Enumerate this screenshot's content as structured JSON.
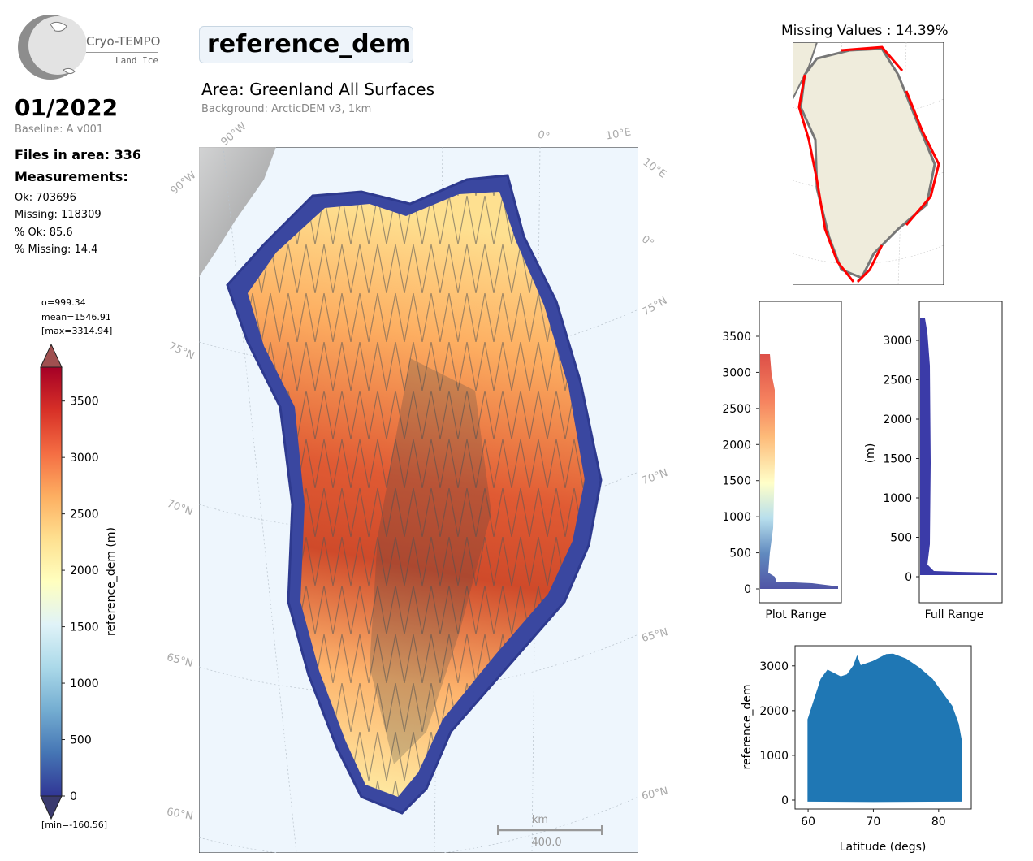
{
  "logo": {
    "name": "Cryo-TEMPO",
    "subtitle": "Land Ice"
  },
  "header": {
    "date": "01/2022",
    "baseline": "Baseline: A v001",
    "files_in_area": "Files in area: 336",
    "measurements_heading": "Measurements:",
    "stats": [
      "Ok: 703696",
      "Missing: 118309",
      "% Ok: 85.6",
      "% Missing: 14.4"
    ]
  },
  "main_map": {
    "title": "reference_dem",
    "area": "Area: Greenland All Surfaces",
    "background": "Background: ArcticDEM v3, 1km",
    "grid_labels": {
      "top": [
        "90°W",
        "0°",
        "10°E"
      ],
      "left": [
        "90°W",
        "75°N",
        "70°N",
        "65°N",
        "60°N"
      ],
      "right": [
        "10°E",
        "0°",
        "75°N",
        "70°N",
        "65°N",
        "60°N"
      ]
    },
    "scalebar_unit": "km",
    "scalebar_value": "400.0"
  },
  "colorbar": {
    "stats": [
      "σ=999.34",
      "mean=1546.91",
      "[max=3314.94]"
    ],
    "label": "reference_dem (m)",
    "ticks": [
      "3500",
      "3000",
      "2500",
      "2000",
      "1500",
      "1000",
      "500",
      "0"
    ],
    "min_label": "[min=-160.56]",
    "colors": [
      "#313695",
      "#4575b4",
      "#74add1",
      "#abd9e9",
      "#e0f3f8",
      "#ffffbf",
      "#fee090",
      "#fdae61",
      "#f46d43",
      "#d73027",
      "#a50026"
    ]
  },
  "missing_map": {
    "title": "Missing Values : 14.39%",
    "missing_color": "#ff0000",
    "land_color": "#efecdc"
  },
  "hist_plot_range": {
    "ticks": [
      "3500",
      "3000",
      "2500",
      "2000",
      "1500",
      "1000",
      "500",
      "0"
    ],
    "xlabel": "Plot Range"
  },
  "hist_full_range": {
    "ticks": [
      "3000",
      "2500",
      "2000",
      "1500",
      "1000",
      "500",
      "0"
    ],
    "ylabel": "(m)",
    "xlabel": "Full Range",
    "bar_color": "#3b3ba8"
  },
  "chart_data": {
    "type": "scatter",
    "xlabel": "Latitude (degs)",
    "ylabel": "reference_dem",
    "xlim": [
      58,
      85
    ],
    "ylim": [
      -200,
      3450
    ],
    "xticks": [
      "60",
      "70",
      "80"
    ],
    "yticks": [
      "3000",
      "2000",
      "1000",
      "0"
    ],
    "color": "#1f77b4",
    "upper_envelope": [
      {
        "x": 60,
        "y": 1800
      },
      {
        "x": 62,
        "y": 2700
      },
      {
        "x": 63,
        "y": 2900
      },
      {
        "x": 65,
        "y": 2750
      },
      {
        "x": 66,
        "y": 2800
      },
      {
        "x": 67,
        "y": 3000
      },
      {
        "x": 67.5,
        "y": 3200
      },
      {
        "x": 68,
        "y": 3000
      },
      {
        "x": 70,
        "y": 3100
      },
      {
        "x": 72,
        "y": 3250
      },
      {
        "x": 73,
        "y": 3260
      },
      {
        "x": 75,
        "y": 3150
      },
      {
        "x": 77,
        "y": 2950
      },
      {
        "x": 79,
        "y": 2700
      },
      {
        "x": 81,
        "y": 2300
      },
      {
        "x": 82,
        "y": 2100
      },
      {
        "x": 83,
        "y": 1700
      },
      {
        "x": 83.5,
        "y": 1300
      }
    ],
    "lower_envelope": [
      {
        "x": 60,
        "y": -20
      },
      {
        "x": 70,
        "y": -30
      },
      {
        "x": 83.5,
        "y": -20
      }
    ]
  }
}
